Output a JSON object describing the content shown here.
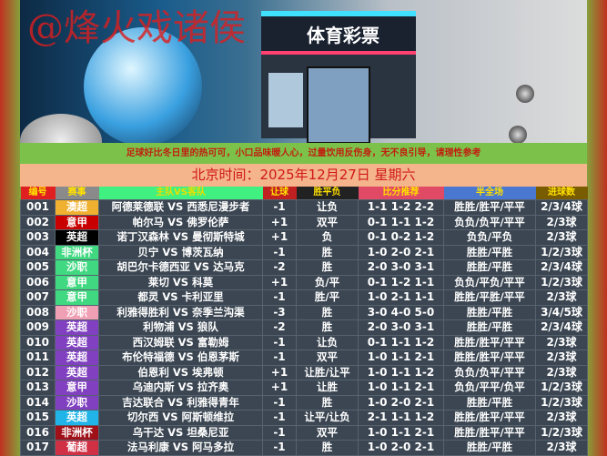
{
  "banner": {
    "watermark": "@烽火戏诸侯",
    "sign": "体育彩票"
  },
  "notice": "足球好比冬日里的热可可，小口品味暖人心，过量饮用反伤身，无不良引导，请理性参考",
  "date": "北京时间：2025年12月27日  星期六",
  "columns": [
    {
      "label": "编号",
      "bg": "#e02020",
      "color": "#ffe000"
    },
    {
      "label": "赛事",
      "bg": "#8a8a8a",
      "color": "#ffe000"
    },
    {
      "label": "主队VS客队",
      "bg": "#40f080",
      "color": "#e8e000"
    },
    {
      "label": "让球",
      "bg": "#c02020",
      "color": "#ffe000"
    },
    {
      "label": "胜平负",
      "bg": "#222222",
      "color": "#ffe000"
    },
    {
      "label": "比分推荐",
      "bg": "#e04a64",
      "color": "#ffe000"
    },
    {
      "label": "半全场",
      "bg": "#4a78d0",
      "color": "#ffe000"
    },
    {
      "label": "进球数",
      "bg": "#7a5c00",
      "color": "#ffe000"
    }
  ],
  "rows": [
    {
      "id": "001",
      "league": "澳超",
      "league_color": "#f0b030",
      "match": "阿德莱德联 VS 西悉尼漫步者",
      "handicap": "-1",
      "result": "让负",
      "score": "1-1 1-2 2-2",
      "htft": "胜胜/胜平/平平",
      "goals": "2/3/4球"
    },
    {
      "id": "002",
      "league": "意甲",
      "league_color": "#c80000",
      "match": "帕尔马 VS 佛罗伦萨",
      "handicap": "+1",
      "result": "双平",
      "score": "0-1 1-1 1-2",
      "htft": "负负/负平/平平",
      "goals": "2/3球"
    },
    {
      "id": "003",
      "league": "英超",
      "league_color": "#000000",
      "match": "诺丁汉森林 VS 曼彻斯特城",
      "handicap": "+1",
      "result": "负",
      "score": "0-1 0-2 1-2",
      "htft": "负负/平负",
      "goals": "2/3球"
    },
    {
      "id": "004",
      "league": "非洲杯",
      "league_color": "#40d880",
      "match": "贝宁 VS 博茨瓦纳",
      "handicap": "-1",
      "result": "胜",
      "score": "1-0 2-0 2-1",
      "htft": "胜胜/平胜",
      "goals": "1/2/3球"
    },
    {
      "id": "005",
      "league": "沙职",
      "league_color": "#40d880",
      "match": "胡巴尔卡德西亚 VS 达马克",
      "handicap": "-2",
      "result": "胜",
      "score": "2-0 3-0 3-1",
      "htft": "胜胜/平胜",
      "goals": "2/3/4球"
    },
    {
      "id": "006",
      "league": "意甲",
      "league_color": "#40d880",
      "match": "莱切 VS 科莫",
      "handicap": "+1",
      "result": "负/平",
      "score": "0-1 1-2 1-1",
      "htft": "负负/平负/平平",
      "goals": "1/2/3球"
    },
    {
      "id": "007",
      "league": "意甲",
      "league_color": "#40d880",
      "match": "都灵 VS 卡利亚里",
      "handicap": "-1",
      "result": "胜/平",
      "score": "1-0 2-1 1-1",
      "htft": "胜胜/平胜/平平",
      "goals": "2/3球"
    },
    {
      "id": "008",
      "league": "沙职",
      "league_color": "#f0a0b4",
      "match": "利雅得胜利 VS 奈季兰沟渠",
      "handicap": "-3",
      "result": "胜",
      "score": "3-0 4-0 5-0",
      "htft": "胜胜/平胜",
      "goals": "3/4/5球"
    },
    {
      "id": "009",
      "league": "英超",
      "league_color": "#8040c0",
      "match": "利物浦 VS 狼队",
      "handicap": "-2",
      "result": "胜",
      "score": "2-0 3-0 3-1",
      "htft": "胜胜/平胜",
      "goals": "2/3/4球"
    },
    {
      "id": "010",
      "league": "英超",
      "league_color": "#8040c0",
      "match": "西汉姆联 VS 富勒姆",
      "handicap": "-1",
      "result": "让负",
      "score": "0-1 1-1 1-2",
      "htft": "胜胜/胜平/平平",
      "goals": "2/3球"
    },
    {
      "id": "011",
      "league": "英超",
      "league_color": "#8040c0",
      "match": "布伦特福德 VS 伯恩茅斯",
      "handicap": "-1",
      "result": "双平",
      "score": "1-0 1-1 2-1",
      "htft": "胜胜/胜平/平平",
      "goals": "2/3球"
    },
    {
      "id": "012",
      "league": "英超",
      "league_color": "#8040c0",
      "match": "伯恩利 VS 埃弗顿",
      "handicap": "+1",
      "result": "让胜/让平",
      "score": "1-0 1-1 1-2",
      "htft": "负负/负平/平平",
      "goals": "2/3球"
    },
    {
      "id": "013",
      "league": "意甲",
      "league_color": "#8040c0",
      "match": "乌迪内斯 VS 拉齐奥",
      "handicap": "+1",
      "result": "让胜",
      "score": "1-0 1-1 2-1",
      "htft": "负负/平平/负平",
      "goals": "1/2/3球"
    },
    {
      "id": "014",
      "league": "沙职",
      "league_color": "#8040c0",
      "match": "吉达联合 VS 利雅得青年",
      "handicap": "-1",
      "result": "胜",
      "score": "1-0 2-0 2-1",
      "htft": "胜胜/平胜",
      "goals": "1/2/3球"
    },
    {
      "id": "015",
      "league": "英超",
      "league_color": "#20b4e8",
      "match": "切尔西 VS 阿斯顿维拉",
      "handicap": "-1",
      "result": "让平/让负",
      "score": "2-1 1-1 1-2",
      "htft": "胜胜/胜平/平平",
      "goals": "2/3球"
    },
    {
      "id": "016",
      "league": "非洲杯",
      "league_color": "#a01018",
      "match": "乌干达 VS 坦桑尼亚",
      "handicap": "-1",
      "result": "双平",
      "score": "1-0 1-1 2-1",
      "htft": "胜胜/胜平/平平",
      "goals": "1/2/3球"
    },
    {
      "id": "017",
      "league": "葡超",
      "league_color": "#d03044",
      "match": "法马利康 VS 阿马多拉",
      "handicap": "-1",
      "result": "胜",
      "score": "1-0 2-0 2-1",
      "htft": "胜胜/平胜",
      "goals": "2/3球"
    }
  ]
}
